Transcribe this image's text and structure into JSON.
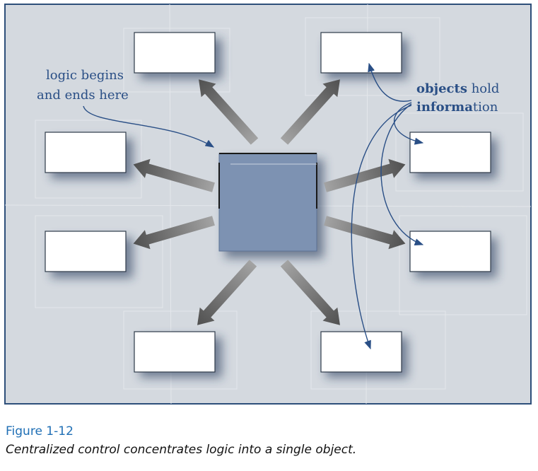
{
  "diagram": {
    "annotation_left": {
      "line1": "logic begins",
      "line2": "and ends here"
    },
    "annotation_right": {
      "line1_bold": "objects",
      "line1_rest": " hold",
      "line2_bold": "informa",
      "line2_rest": "tion"
    },
    "colors": {
      "panel": "#d4d9df",
      "panel_border": "#2e4f7a",
      "center": "#7d92b2",
      "arrow": "#6e6e6e",
      "annotation": "#2a4f86"
    }
  },
  "caption": {
    "number": "Figure 1-12",
    "text": "Centralized control concentrates logic into a single object."
  }
}
